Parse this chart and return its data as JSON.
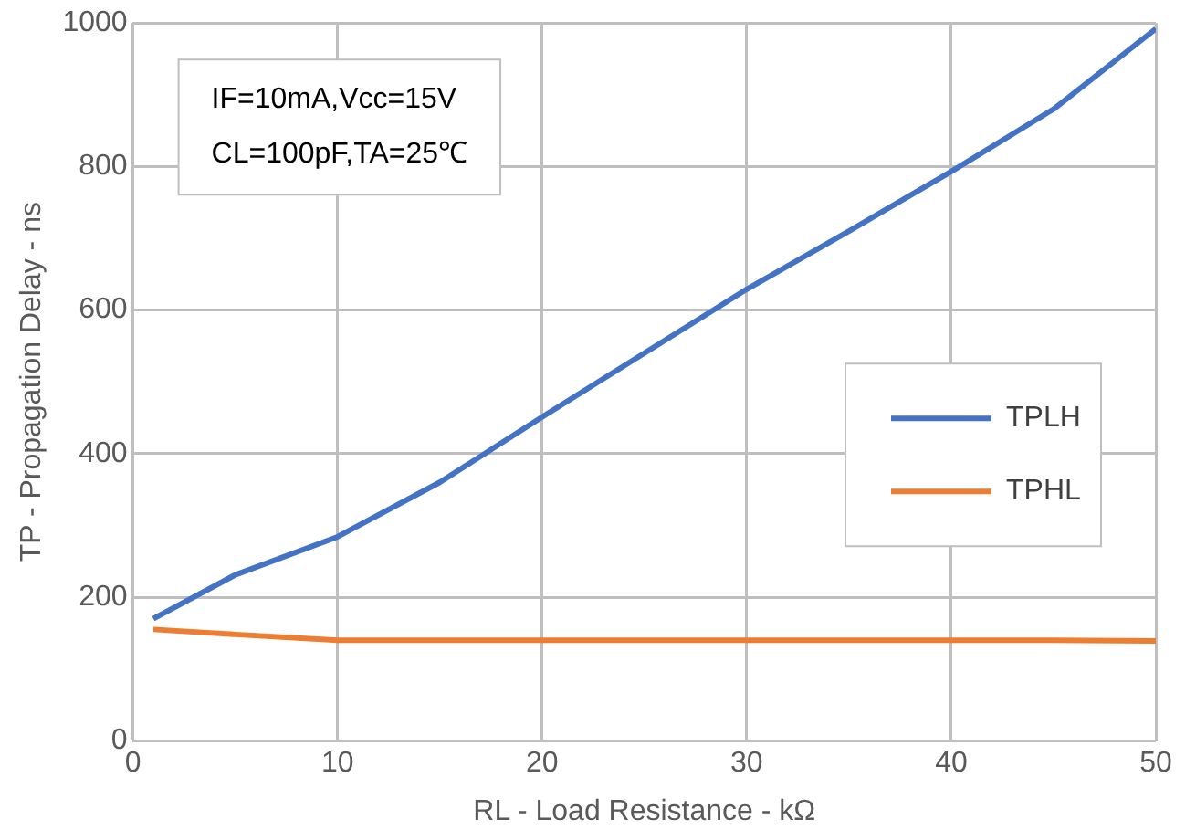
{
  "chart_data": {
    "type": "line",
    "xlabel": "RL - Load Resistance - kΩ",
    "ylabel": "TP - Propagation Delay - ns",
    "annotations": [
      "IF=10mA,Vcc=15V",
      "CL=100pF,TA=25℃"
    ],
    "series": [
      {
        "name": "TPLH",
        "color": "#4472c4",
        "x": [
          1,
          5,
          10,
          15,
          20,
          25,
          30,
          35,
          40,
          45,
          50
        ],
        "values": [
          170,
          231,
          284,
          360,
          451,
          540,
          629,
          710,
          793,
          880,
          992
        ]
      },
      {
        "name": "TPHL",
        "color": "#ed7d31",
        "x": [
          1,
          5,
          10,
          15,
          20,
          25,
          30,
          35,
          40,
          45,
          50
        ],
        "values": [
          155,
          148,
          140,
          140,
          140,
          140,
          140,
          140,
          140,
          140,
          139
        ]
      }
    ],
    "xlim": [
      0,
      50
    ],
    "xticks": [
      0,
      10,
      20,
      30,
      40,
      50
    ],
    "ylim": [
      0,
      1000
    ],
    "yticks": [
      0,
      200,
      400,
      600,
      800,
      1000
    ],
    "grid": true,
    "legend": "right",
    "marker": "none",
    "line_style": "solid"
  }
}
